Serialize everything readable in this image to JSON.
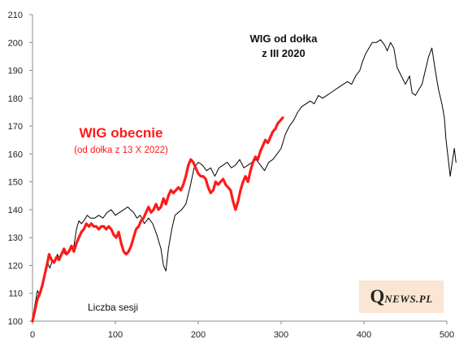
{
  "chart_data": {
    "type": "line",
    "xlabel": "Liczba sesji",
    "ylabel": "",
    "xlim": [
      0,
      500
    ],
    "ylim": [
      100,
      210
    ],
    "x_ticks": [
      "0",
      "100",
      "200",
      "300",
      "400",
      "500"
    ],
    "y_ticks": [
      "100",
      "110",
      "120",
      "130",
      "140",
      "150",
      "160",
      "170",
      "180",
      "190",
      "200",
      "210"
    ],
    "grid": false,
    "annotations": {
      "black_line1": "WIG od dołka",
      "black_line2": "z III 2020",
      "red_title": "WIG obecnie",
      "red_subtitle": "(od dołka z 13  X 2022)"
    },
    "series": [
      {
        "name": "WIG od dołka z III 2020",
        "color": "#000000",
        "x": [
          0,
          3,
          6,
          9,
          12,
          15,
          18,
          21,
          24,
          27,
          30,
          33,
          36,
          40,
          45,
          50,
          53,
          56,
          59,
          62,
          66,
          70,
          75,
          80,
          85,
          90,
          95,
          100,
          105,
          110,
          115,
          118,
          122,
          126,
          130,
          135,
          140,
          145,
          150,
          155,
          158,
          161,
          164,
          168,
          172,
          176,
          180,
          185,
          190,
          195,
          200,
          205,
          210,
          215,
          220,
          225,
          230,
          235,
          240,
          245,
          250,
          255,
          260,
          265,
          270,
          275,
          280,
          285,
          290,
          295,
          300,
          305,
          310,
          315,
          320,
          325,
          330,
          335,
          340,
          345,
          350,
          355,
          360,
          365,
          370,
          375,
          380,
          385,
          390,
          395,
          398,
          402,
          406,
          410,
          415,
          420,
          425,
          428,
          432,
          436,
          440,
          445,
          450,
          455,
          458,
          462,
          466,
          470,
          474,
          478,
          482,
          486,
          490,
          494,
          497,
          499,
          501,
          504,
          507,
          509,
          511
        ],
        "values": [
          101,
          106,
          111,
          109,
          113,
          118,
          121,
          119,
          122,
          121,
          124,
          122,
          125,
          124,
          126,
          127,
          133,
          136,
          135,
          136,
          138,
          137,
          137,
          138,
          137,
          139,
          140,
          138,
          139,
          140,
          141,
          140,
          139,
          137,
          138,
          135,
          137,
          135,
          131,
          126,
          120,
          118,
          126,
          133,
          138,
          139,
          140,
          142,
          148,
          155,
          157,
          156,
          154,
          155,
          152,
          155,
          156,
          157,
          155,
          156,
          158,
          155,
          156,
          157,
          158,
          156,
          154,
          157,
          158,
          160,
          162,
          167,
          170,
          172,
          175,
          177,
          178,
          179,
          178,
          181,
          180,
          181,
          182,
          183,
          184,
          185,
          186,
          185,
          188,
          190,
          193,
          196,
          198,
          200,
          200,
          201,
          199,
          197,
          200,
          198,
          191,
          188,
          185,
          188,
          182,
          181,
          183,
          185,
          190,
          195,
          198,
          190,
          183,
          178,
          173,
          165,
          160,
          152,
          158,
          162,
          157
        ]
      },
      {
        "name": "WIG obecnie (od dołka z 13 X 2022)",
        "color": "#ff1a1a",
        "x": [
          0,
          3,
          6,
          9,
          12,
          15,
          18,
          20,
          23,
          26,
          29,
          32,
          35,
          38,
          41,
          44,
          47,
          50,
          53,
          56,
          59,
          62,
          65,
          68,
          71,
          74,
          77,
          80,
          83,
          86,
          89,
          92,
          95,
          98,
          101,
          104,
          107,
          110,
          113,
          116,
          119,
          122,
          125,
          128,
          131,
          134,
          137,
          140,
          143,
          146,
          149,
          152,
          155,
          158,
          161,
          164,
          167,
          170,
          173,
          176,
          179,
          182,
          185,
          188,
          191,
          194,
          197,
          200,
          203,
          206,
          209,
          212,
          215,
          218,
          221,
          224,
          227,
          230,
          233,
          236,
          239,
          242,
          245,
          248,
          251,
          254,
          257,
          260,
          263,
          266,
          269,
          272,
          275,
          278,
          281,
          284,
          287,
          290,
          293,
          296,
          299,
          302
        ],
        "values": [
          100,
          104,
          108,
          110,
          113,
          117,
          121,
          124,
          122,
          121,
          123,
          122,
          124,
          126,
          124,
          125,
          127,
          125,
          128,
          130,
          132,
          133,
          135,
          134,
          135,
          134,
          134,
          133,
          134,
          134,
          133,
          134,
          133,
          131,
          130,
          132,
          128,
          125,
          124,
          125,
          127,
          130,
          133,
          134,
          136,
          137,
          139,
          141,
          139,
          140,
          142,
          140,
          141,
          144,
          142,
          145,
          147,
          146,
          147,
          148,
          147,
          149,
          152,
          156,
          158,
          157,
          155,
          153,
          152,
          152,
          151,
          148,
          146,
          147,
          150,
          149,
          150,
          151,
          149,
          148,
          147,
          143,
          140,
          143,
          147,
          150,
          152,
          150,
          154,
          157,
          159,
          158,
          161,
          163,
          165,
          164,
          166,
          168,
          169,
          171,
          172,
          173
        ]
      }
    ]
  },
  "brand": {
    "q": "Q",
    "rest": "NEWS.PL"
  }
}
